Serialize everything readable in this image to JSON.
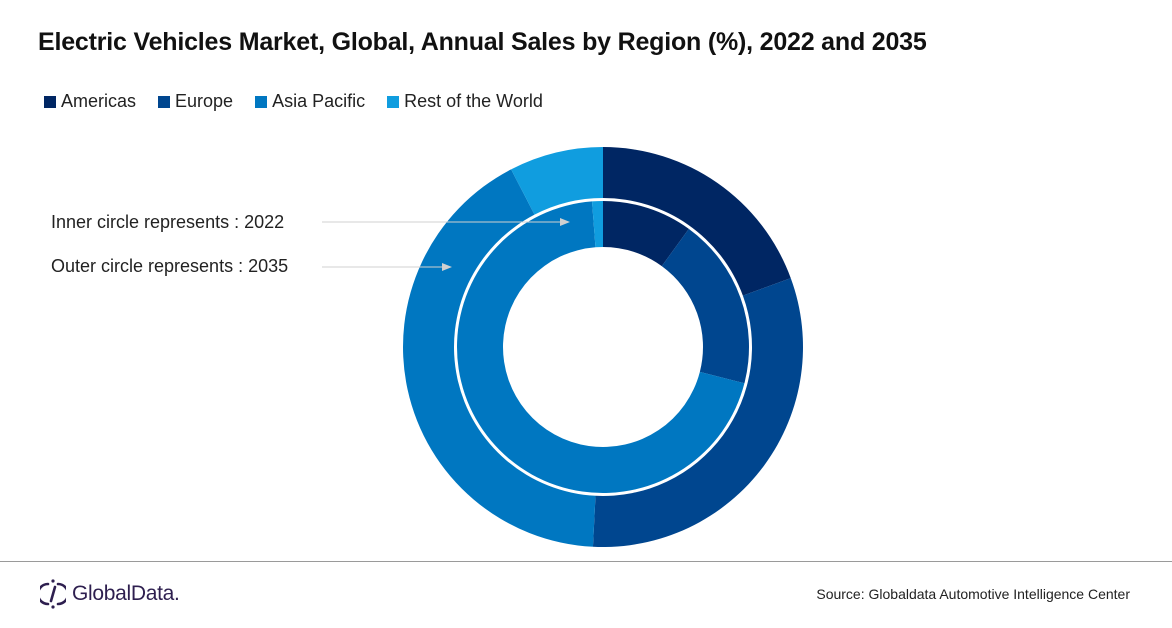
{
  "chart_data": {
    "type": "pie",
    "subtype": "nested-donut",
    "title": "Electric Vehicles Market, Global, Annual Sales by Region (%), 2022 and 2035",
    "categories": [
      "Americas",
      "Europe",
      "Asia Pacific",
      "Rest of the World"
    ],
    "colors": [
      "#002663",
      "#00468f",
      "#0077c1",
      "#109ddf"
    ],
    "series": [
      {
        "name": "2022",
        "ring": "inner",
        "values": [
          10.0,
          19.0,
          69.8,
          1.2
        ]
      },
      {
        "name": "2035",
        "ring": "outer",
        "values": [
          19.4,
          31.4,
          41.6,
          7.6
        ]
      }
    ],
    "legend_position": "top-left",
    "annotations": [
      {
        "text": "Inner circle represents : 2022",
        "points_to": "inner"
      },
      {
        "text": "Outer circle represents : 2035",
        "points_to": "outer"
      }
    ]
  },
  "footer": {
    "logo_text": "GlobalData.",
    "source": "Source:  Globaldata Automotive  Intelligence Center"
  }
}
